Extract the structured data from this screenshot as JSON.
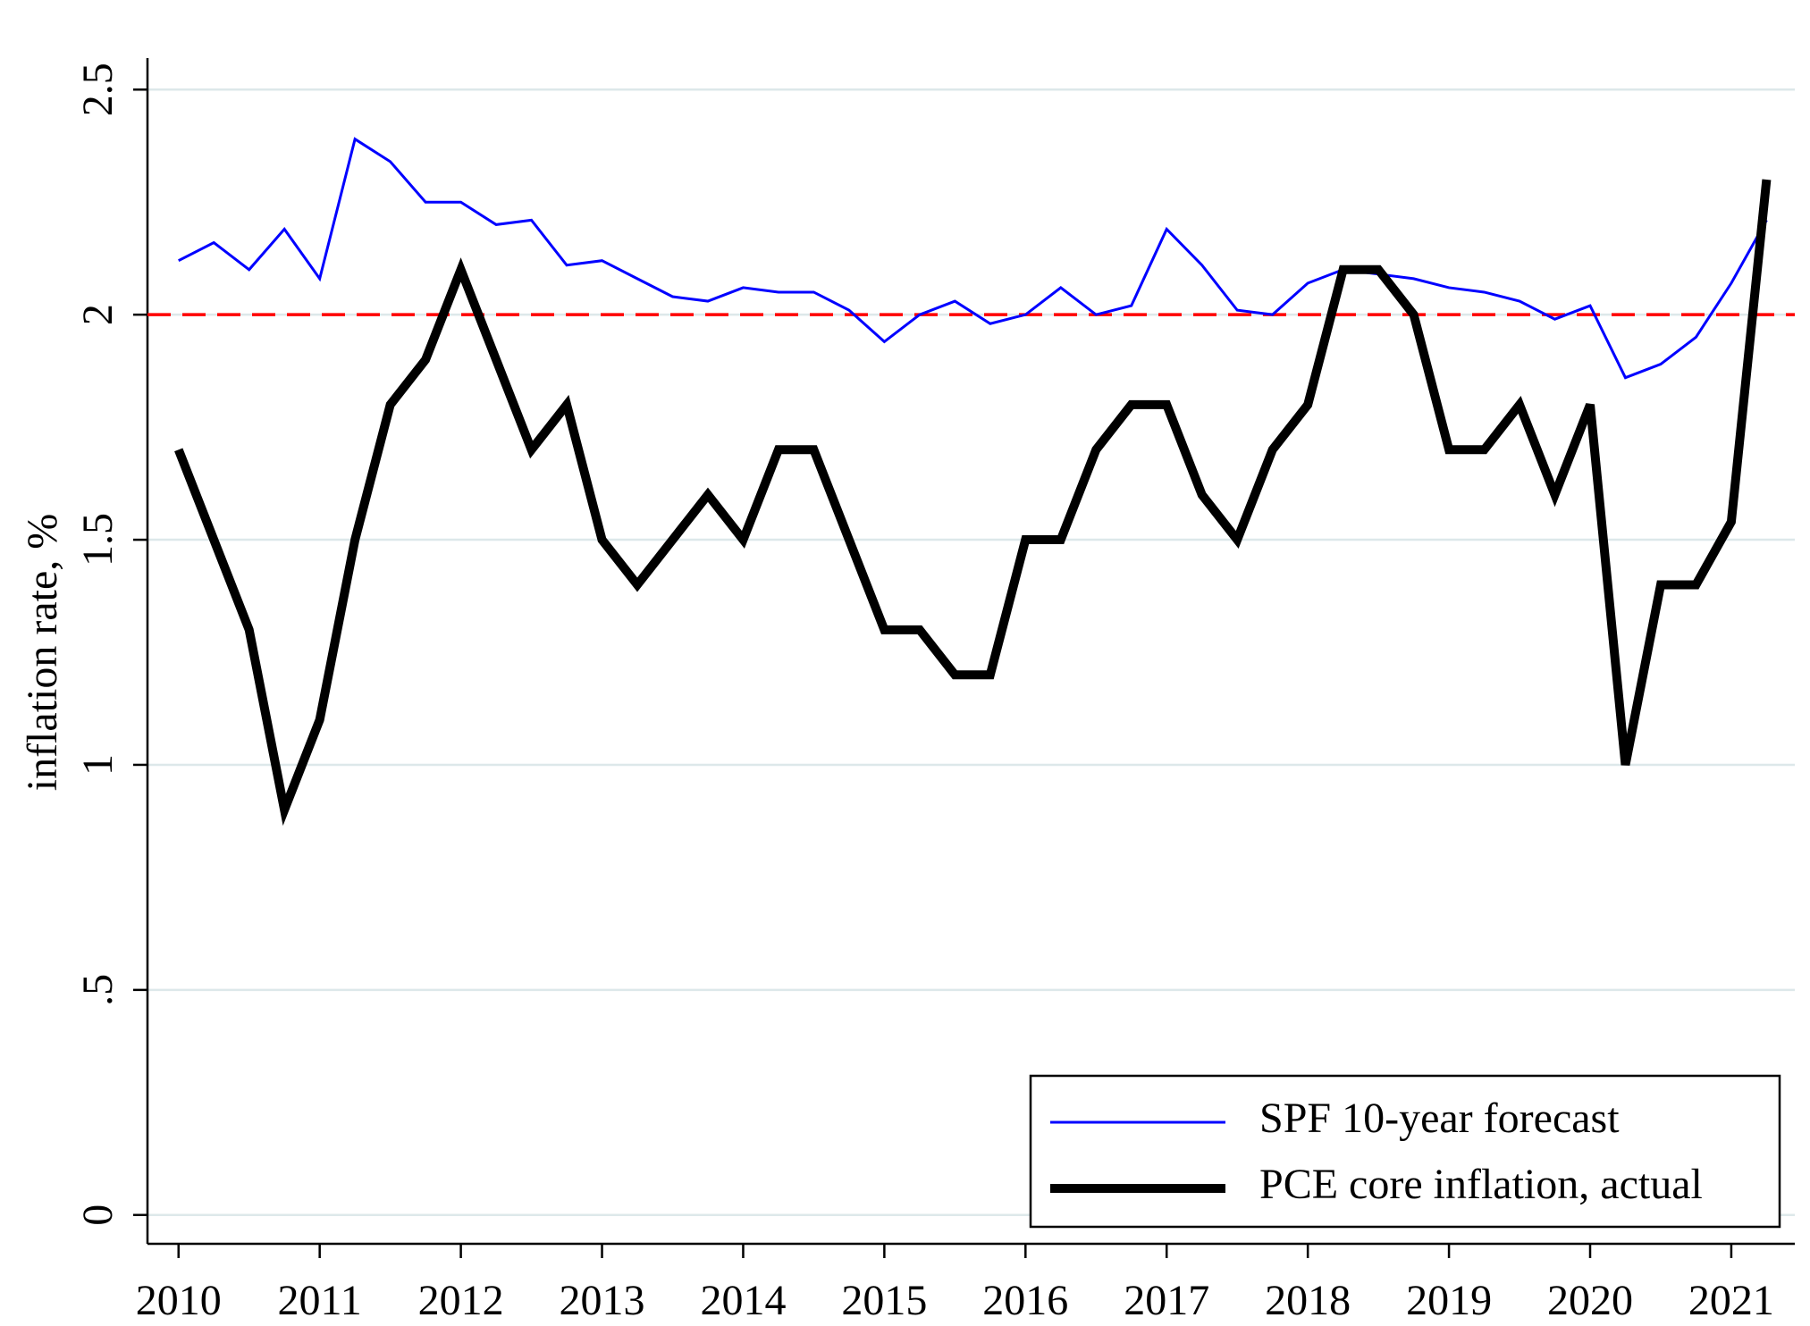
{
  "chart_data": {
    "type": "line",
    "ylabel": "inflation rate, %",
    "x": [
      2010,
      2010.25,
      2010.5,
      2010.75,
      2011,
      2011.25,
      2011.5,
      2011.75,
      2012,
      2012.25,
      2012.5,
      2012.75,
      2013,
      2013.25,
      2013.5,
      2013.75,
      2014,
      2014.25,
      2014.5,
      2014.75,
      2015,
      2015.25,
      2015.5,
      2015.75,
      2016,
      2016.25,
      2016.5,
      2016.75,
      2017,
      2017.25,
      2017.5,
      2017.75,
      2018,
      2018.25,
      2018.5,
      2018.75,
      2019,
      2019.25,
      2019.5,
      2019.75,
      2020,
      2020.25,
      2020.5,
      2020.75,
      2021,
      2021.25
    ],
    "series": [
      {
        "name": "SPF 10-year forecast",
        "color": "#0000ff",
        "width": 3,
        "values": [
          2.12,
          2.16,
          2.1,
          2.19,
          2.08,
          2.39,
          2.34,
          2.25,
          2.25,
          2.2,
          2.21,
          2.11,
          2.12,
          2.08,
          2.04,
          2.03,
          2.06,
          2.05,
          2.05,
          2.01,
          1.94,
          2.0,
          2.03,
          1.98,
          2.0,
          2.06,
          2.0,
          2.02,
          2.19,
          2.11,
          2.01,
          2.0,
          2.07,
          2.1,
          2.09,
          2.08,
          2.06,
          2.05,
          2.03,
          1.99,
          2.02,
          1.86,
          1.89,
          1.95,
          2.07,
          2.21
        ]
      },
      {
        "name": "PCE core inflation, actual",
        "color": "#000000",
        "width": 10,
        "values": [
          1.7,
          1.5,
          1.3,
          0.9,
          1.1,
          1.5,
          1.8,
          1.9,
          2.1,
          1.9,
          1.7,
          1.8,
          1.5,
          1.4,
          1.5,
          1.6,
          1.5,
          1.7,
          1.7,
          1.5,
          1.3,
          1.3,
          1.2,
          1.2,
          1.5,
          1.5,
          1.7,
          1.8,
          1.8,
          1.6,
          1.5,
          1.7,
          1.8,
          2.1,
          2.1,
          2.0,
          1.7,
          1.7,
          1.8,
          1.6,
          1.8,
          1.0,
          1.4,
          1.4,
          1.54,
          2.3
        ]
      }
    ],
    "hline": {
      "value": 2,
      "color": "#ff0000"
    },
    "xlim": [
      2009.78,
      2021.45
    ],
    "xticks": [
      2010,
      2011,
      2012,
      2013,
      2014,
      2015,
      2016,
      2017,
      2018,
      2019,
      2020,
      2021
    ],
    "ylim": [
      -0.064,
      2.57
    ],
    "yticks": [
      0,
      {
        "value": 0.5,
        "label": ".5"
      },
      1,
      1.5,
      2,
      2.5
    ],
    "grid": true,
    "legend": "lower right"
  }
}
